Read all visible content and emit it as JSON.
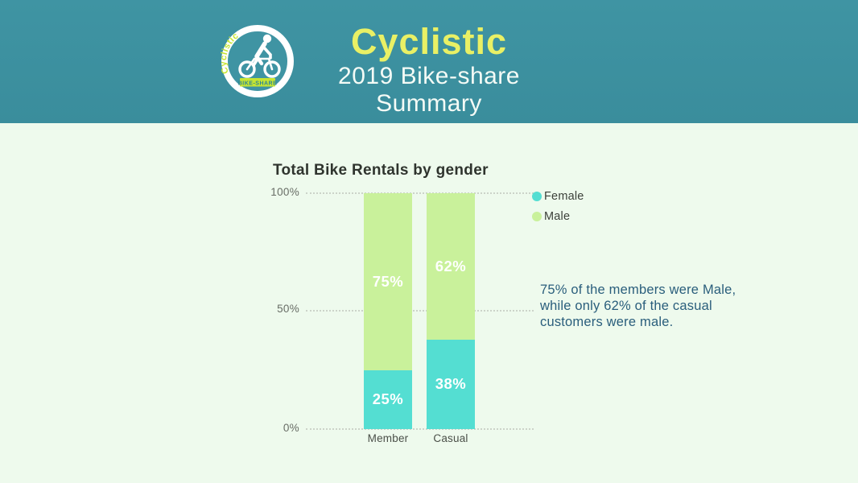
{
  "header": {
    "title": "Cyclistic",
    "subtitle": "2019 Bike-share Summary",
    "bg_color": "#3f93a2",
    "title_color": "#e9f065",
    "subtitle_color": "#f4fbf6",
    "logo": {
      "arc_text": "Cyclistic",
      "badge_text": "BIKE-SHARE",
      "accent_color": "#c6e532"
    }
  },
  "page": {
    "bg_color": "#eefaed"
  },
  "chart_data": {
    "type": "bar",
    "stacked": true,
    "percent_scale": true,
    "title": "Total Bike Rentals by gender",
    "categories": [
      "Member",
      "Casual"
    ],
    "series": [
      {
        "name": "Male",
        "color": "#c9f19b",
        "values": [
          75,
          62
        ],
        "labels": [
          "75%",
          "62%"
        ]
      },
      {
        "name": "Female",
        "color": "#54ded2",
        "values": [
          25,
          38
        ],
        "labels": [
          "25%",
          "38%"
        ]
      }
    ],
    "y_ticks": [
      "100%",
      "50%",
      "0%"
    ],
    "ylim": [
      0,
      100
    ],
    "grid": "horizontal-dotted",
    "legend_position": "top-right",
    "legend_order": [
      "Female",
      "Male"
    ]
  },
  "annotation": {
    "color": "#2a5e7c",
    "lines": [
      "75% of the members were Male,",
      "while only 62% of the casual",
      "customers were male."
    ]
  }
}
